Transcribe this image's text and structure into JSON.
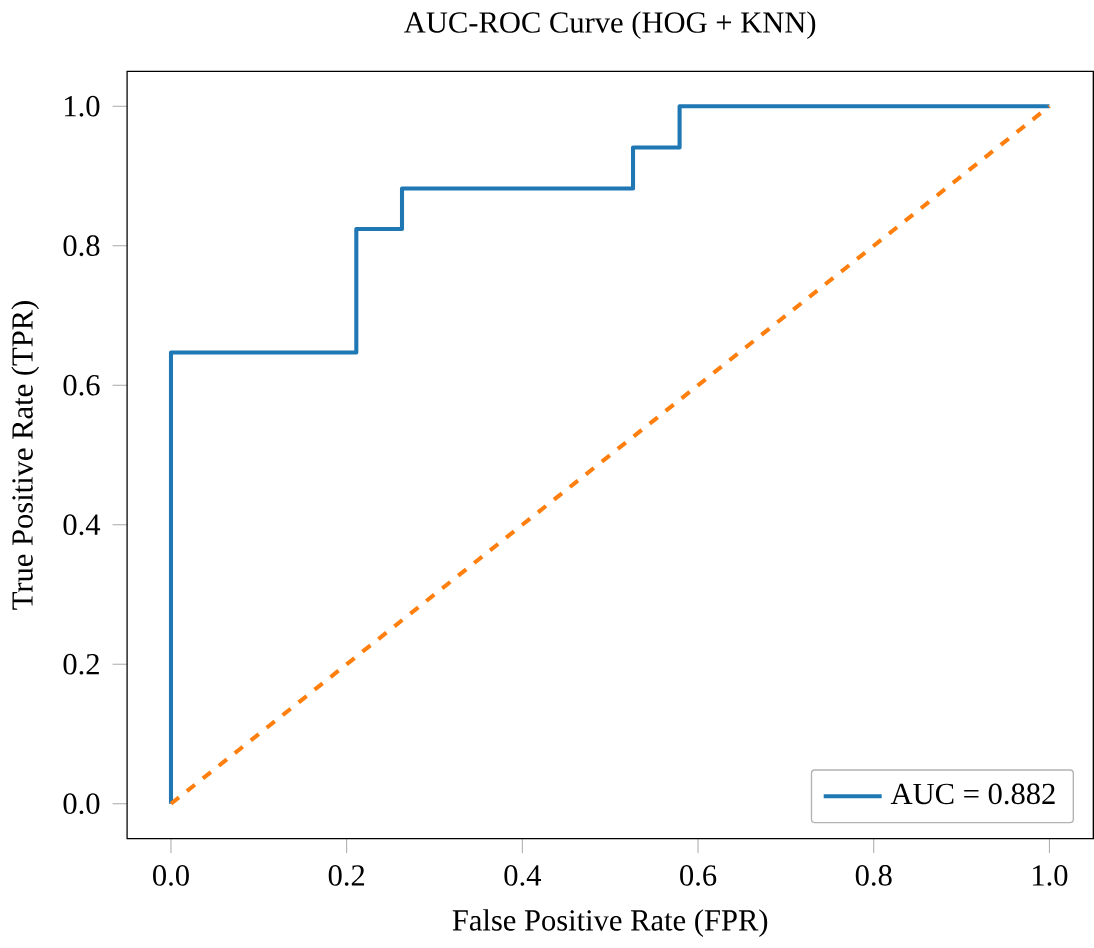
{
  "chart_data": {
    "type": "line",
    "title": "AUC-ROC Curve (HOG + KNN)",
    "xlabel": "False Positive Rate (FPR)",
    "ylabel": "True Positive Rate (TPR)",
    "xlim": [
      -0.05,
      1.05
    ],
    "ylim": [
      -0.05,
      1.05
    ],
    "xticks": [
      {
        "value": 0,
        "label": "0.0"
      },
      0.2,
      0.4,
      0.6,
      0.8,
      {
        "value": 1,
        "label": "1.0"
      }
    ],
    "yticks": [
      {
        "value": 0,
        "label": "0.0"
      },
      0.2,
      0.4,
      0.6,
      0.8,
      {
        "value": 1,
        "label": "1.0"
      }
    ],
    "legend": "bottom right",
    "grid": false,
    "series": [
      {
        "name": "AUC = 0.882",
        "type": "step",
        "color": "#1f77b4",
        "x": [
          0,
          0,
          0.211,
          0.263,
          0.526,
          0.579,
          1
        ],
        "values": [
          0,
          0.647,
          0.824,
          0.882,
          0.941,
          1,
          1
        ]
      },
      {
        "color": "#ff7f0e",
        "line_style": "dashed",
        "x": [
          0,
          1
        ],
        "values": [
          0,
          1
        ]
      }
    ]
  }
}
